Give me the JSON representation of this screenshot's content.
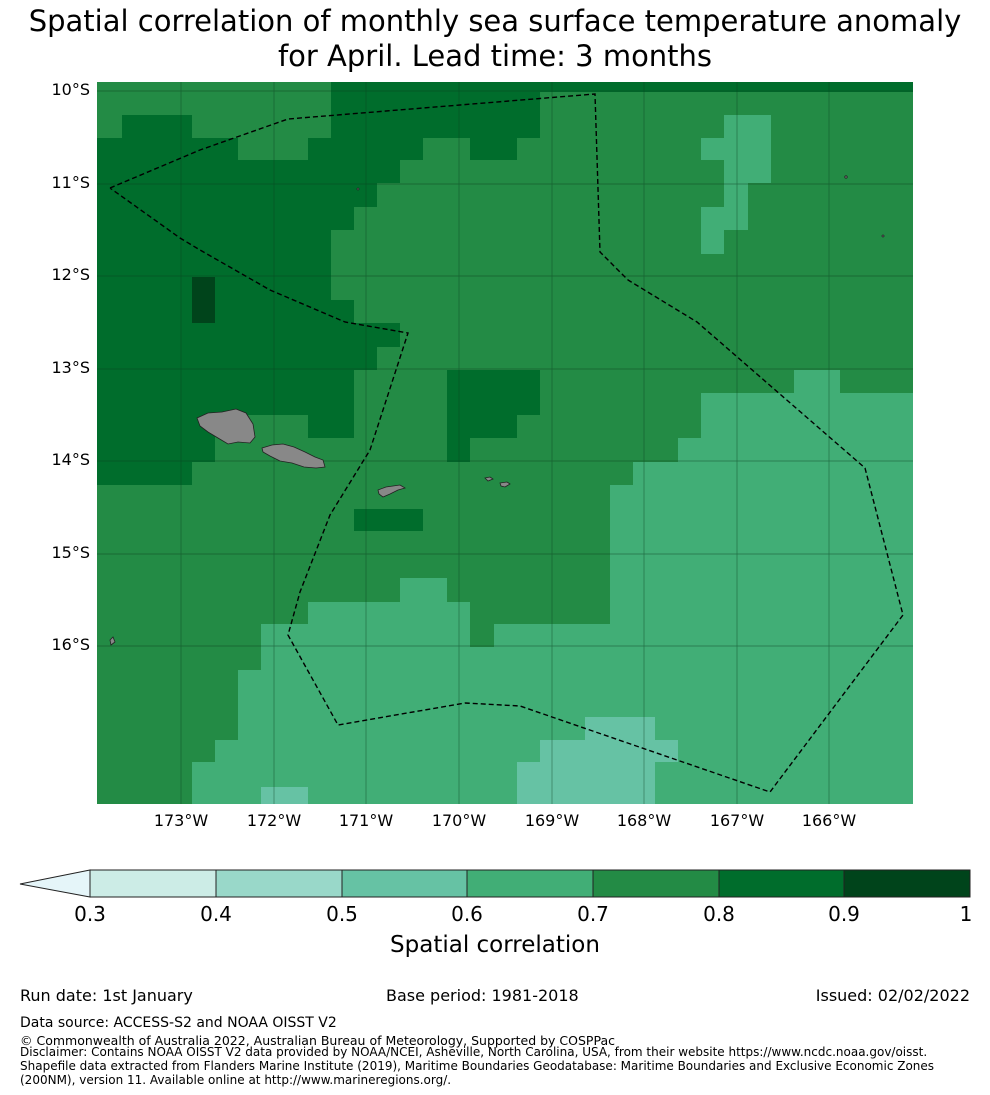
{
  "title_line1": "Spatial correlation of monthly sea surface temperature anomaly",
  "title_line2": "for April. Lead time: 3 months",
  "map": {
    "lat_labels": [
      "10°S",
      "11°S",
      "12°S",
      "13°S",
      "14°S",
      "15°S",
      "16°S"
    ],
    "lon_labels": [
      "173°W",
      "172°W",
      "171°W",
      "170°W",
      "169°W",
      "168°W",
      "167°W",
      "166°W"
    ],
    "land_color": "#888888",
    "eez_line_style": "dashed black"
  },
  "colorbar": {
    "ticks": [
      "0.3",
      "0.4",
      "0.5",
      "0.6",
      "0.7",
      "0.8",
      "0.9",
      "1"
    ],
    "colors": [
      "#ccece6",
      "#99d8c9",
      "#66c2a4",
      "#41ae76",
      "#238b45",
      "#006d2c",
      "#00441b"
    ],
    "extend_color": "#e5f5f9",
    "label": "Spatial correlation"
  },
  "footer": {
    "run_date": "Run date: 1st January",
    "base_period": "Base period: 1981-2018",
    "issued": "Issued: 02/02/2022",
    "data_source": "Data source: ACCESS-S2 and NOAA OISST V2",
    "copyright": "© Commonwealth of Australia 2022, Australian Bureau of Meteorology, Supported by COSPPac",
    "disclaimer": "Disclaimer: Contains NOAA OISST V2 data provided by NOAA/NCEI, Asheville, North Carolina, USA, from their website https://www.ncdc.noaa.gov/oisst. Shapefile data extracted from Flanders Marine Institute (2019), Maritime Boundaries Geodatabase: Maritime Boundaries and Exclusive Economic Zones (200NM), version 11. Available online at http://www.marineregions.org/."
  }
}
